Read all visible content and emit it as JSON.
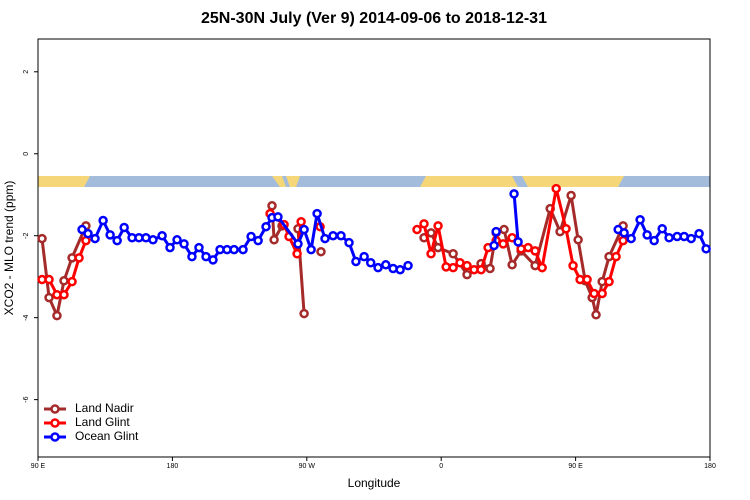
{
  "chart_data": {
    "type": "line",
    "title": "25N-30N July (Ver 9)   2014-09-06 to 2018-12-31",
    "x_label": "Longitude",
    "y_label": "XCO2 - MLO trend (ppm)",
    "xlim": [
      90,
      540
    ],
    "ylim": [
      -7.4,
      2.8
    ],
    "xticks": [
      {
        "value": 90,
        "label": "90 E"
      },
      180,
      {
        "value": 270,
        "label": "90 W"
      },
      {
        "value": 360,
        "label": "0"
      },
      {
        "value": 450,
        "label": "90 E"
      },
      {
        "value": 540,
        "label": "180"
      }
    ],
    "yticks": [
      -6,
      -4,
      -2,
      0,
      2
    ],
    "legend": "bottom-left",
    "series": [
      {
        "name": "Land Nadir",
        "color": "#a52a2a",
        "x": [
          92.7,
          97.4,
          102.7,
          107.4,
          112.8,
          122.1,
          null,
          246.7,
          248.1,
          253.4,
          null,
          264.1,
          268.2,
          null,
          279.5,
          null,
          348.5,
          353.2,
          357.9,
          368,
          377.3,
          386.7,
          392.7,
          396.8,
          402.1,
          407.5,
          413.5,
          422.9,
          433,
          439.6,
          447,
          451.7,
          456.4,
          461.1,
          463.7,
          467.8,
          472.4,
          481.8
        ],
        "values": [
          -2.07,
          -3.51,
          -3.95,
          -3.1,
          -2.54,
          -1.76,
          null,
          -1.27,
          -2.1,
          -1.76,
          null,
          -1.83,
          -3.9,
          null,
          -2.39,
          null,
          -2.05,
          -1.93,
          -2.29,
          -2.44,
          -2.95,
          -2.68,
          -2.8,
          -1.93,
          -1.85,
          -2.71,
          -2.37,
          -2.73,
          -1.34,
          -1.9,
          -1.02,
          -2.1,
          -3.1,
          -3.51,
          -3.93,
          -3.12,
          -2.51,
          -1.76
        ]
      },
      {
        "name": "Land Glint",
        "color": "#ff0000",
        "x": [
          92.7,
          97.4,
          102.7,
          107.4,
          112.8,
          117.5,
          122.1,
          null,
          245.4,
          254.8,
          258.1,
          263.5,
          266.2,
          null,
          278.9,
          null,
          343.8,
          348.5,
          353.2,
          357.9,
          363.3,
          368,
          372.6,
          377.3,
          382,
          386.7,
          391.4,
          396.8,
          401.5,
          407.5,
          413.5,
          418.2,
          422.9,
          427.6,
          437,
          443.6,
          448.3,
          453,
          457.7,
          462.4,
          467.8,
          472.4,
          477.1,
          481.8
        ],
        "values": [
          -3.07,
          -3.07,
          -3.44,
          -3.44,
          -3.12,
          -2.54,
          -2.12,
          null,
          -1.46,
          -1.73,
          -2.02,
          -2.44,
          -1.66,
          null,
          -1.78,
          null,
          -1.85,
          -1.71,
          -2.44,
          -1.76,
          -2.76,
          -2.78,
          -2.66,
          -2.73,
          -2.83,
          -2.83,
          -2.29,
          -2.12,
          -2.2,
          -2.05,
          -2.32,
          -2.29,
          -2.37,
          -2.78,
          -0.85,
          -1.83,
          -2.73,
          -3.07,
          -3.07,
          -3.41,
          -3.41,
          -3.12,
          -2.51,
          -2.12
        ]
      },
      {
        "name": "Ocean Glint",
        "color": "#0000ff",
        "x": [
          119.5,
          123.5,
          128.2,
          133.6,
          138.3,
          143,
          147.7,
          153,
          157.6,
          162.3,
          167,
          173.1,
          178.4,
          183.1,
          187.8,
          193.1,
          197.8,
          202.5,
          207.2,
          211.9,
          216.6,
          221.3,
          227.3,
          232.7,
          237.4,
          242.7,
          246.7,
          250.7,
          264.1,
          268.2,
          272.9,
          276.9,
          282.2,
          287.6,
          292.9,
          298.3,
          302.9,
          308.4,
          312.8,
          317.7,
          322.9,
          327.8,
          332.5,
          337.8,
          null,
          395.4,
          396.8,
          null,
          408.8,
          411.5,
          null,
          478.5,
          482.5,
          487.2,
          493.2,
          497.9,
          502.6,
          508,
          512.6,
          518,
          522.7,
          527.4,
          532.7,
          537.4
        ],
        "values": [
          -1.85,
          -1.95,
          -2.07,
          -1.63,
          -1.98,
          -2.12,
          -1.8,
          -2.05,
          -2.05,
          -2.05,
          -2.1,
          -2.0,
          -2.29,
          -2.1,
          -2.2,
          -2.51,
          -2.29,
          -2.51,
          -2.59,
          -2.34,
          -2.34,
          -2.34,
          -2.34,
          -2.02,
          -2.12,
          -1.78,
          -1.56,
          -1.54,
          -2.2,
          -1.85,
          -2.34,
          -1.46,
          -2.07,
          -2.0,
          -2.0,
          -2.17,
          -2.63,
          -2.51,
          -2.66,
          -2.78,
          -2.71,
          -2.8,
          -2.83,
          -2.73,
          null,
          -2.24,
          -1.9,
          null,
          -0.98,
          -2.15,
          null,
          -1.85,
          -1.93,
          -2.07,
          -1.61,
          -1.98,
          -2.12,
          -1.83,
          -2.05,
          -2.02,
          -2.02,
          -2.07,
          -1.95,
          -2.32
        ]
      }
    ]
  }
}
